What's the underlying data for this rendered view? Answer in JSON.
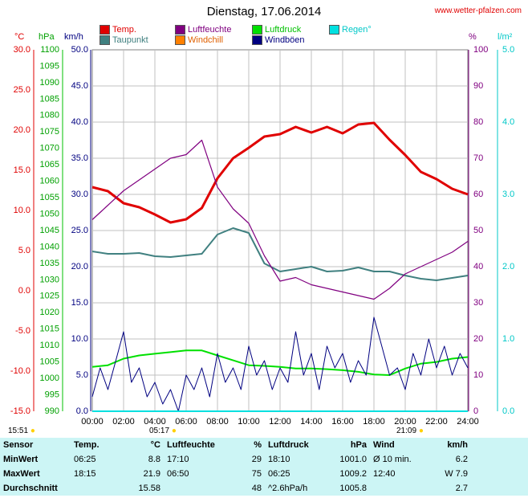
{
  "title": "Dienstag, 17.06.2014",
  "credit": "www.wetter-pfalzen.com",
  "colors": {
    "temp": "#e00000",
    "humidity": "#800080",
    "pressure": "#00e000",
    "dewpoint": "#408080",
    "windchill": "#ff8000",
    "gusts": "#000080",
    "rain": "#00e0e0",
    "wind": "#000080"
  },
  "legend": [
    {
      "label": "Temp.",
      "color": "#e00000",
      "text_color": "#e00000"
    },
    {
      "label": "Luftfeuchte",
      "color": "#800080",
      "text_color": "#800080"
    },
    {
      "label": "Luftdruck",
      "color": "#00e000",
      "text_color": "#00c000"
    },
    {
      "label": "Regen°",
      "color": "#00e0e0",
      "text_color": "#00c8c8"
    },
    {
      "label": "Taupunkt",
      "color": "#408080",
      "text_color": "#408080"
    },
    {
      "label": "Windchill",
      "color": "#ff8000",
      "text_color": "#e06000"
    },
    {
      "label": "Windböen",
      "color": "#000080",
      "text_color": "#000080"
    }
  ],
  "axes": {
    "temp": {
      "unit": "°C",
      "ticks": [
        "30.0",
        "25.0",
        "20.0",
        "15.0",
        "10.0",
        "5.0",
        "0.0",
        "-5.0",
        "-10.0",
        "-15.0"
      ]
    },
    "pressure": {
      "unit": "hPa",
      "ticks": [
        "1100",
        "1095",
        "1090",
        "1085",
        "1080",
        "1075",
        "1070",
        "1065",
        "1060",
        "1055",
        "1050",
        "1045",
        "1040",
        "1035",
        "1030",
        "1025",
        "1020",
        "1015",
        "1010",
        "1005",
        "1000",
        "995",
        "990"
      ]
    },
    "wind": {
      "unit": "km/h",
      "ticks": [
        "50.0",
        "45.0",
        "40.0",
        "35.0",
        "30.0",
        "25.0",
        "20.0",
        "15.0",
        "10.0",
        "5.0",
        "0.0"
      ]
    },
    "humidity": {
      "unit": "%",
      "ticks": [
        "100",
        "90",
        "80",
        "70",
        "60",
        "50",
        "40",
        "30",
        "20",
        "10",
        "0"
      ]
    },
    "rain": {
      "unit": "l/m²",
      "ticks": [
        "5.0",
        "4.0",
        "3.0",
        "2.0",
        "1.0",
        "0.0"
      ]
    },
    "time": {
      "ticks": [
        "00:00",
        "02:00",
        "04:00",
        "06:00",
        "08:00",
        "10:00",
        "12:00",
        "14:00",
        "16:00",
        "18:00",
        "20:00",
        "22:00",
        "24:00"
      ]
    }
  },
  "sun": {
    "left_time": "15:51",
    "sunrise": "05:17",
    "sunset": "21:09"
  },
  "chart_data": {
    "type": "line",
    "title": "Dienstag, 17.06.2014",
    "x_range": [
      "00:00",
      "24:00"
    ],
    "y_axes": {
      "temp_c": [
        -15,
        30
      ],
      "pressure_hpa": [
        990,
        1100
      ],
      "wind_kmh": [
        0,
        50
      ],
      "humidity_pct": [
        0,
        100
      ],
      "rain_lm2": [
        0,
        5
      ]
    },
    "grid": true,
    "series": [
      {
        "name": "Temp.",
        "axis": "temp_c",
        "x": [
          0,
          1,
          2,
          3,
          4,
          5,
          6,
          7,
          8,
          9,
          10,
          11,
          12,
          13,
          14,
          15,
          16,
          17,
          18,
          19,
          20,
          21,
          22,
          23,
          24
        ],
        "y": [
          12.9,
          12.4,
          10.9,
          10.4,
          9.5,
          8.5,
          8.9,
          10.3,
          14.0,
          16.5,
          17.8,
          19.2,
          19.5,
          20.4,
          19.7,
          20.4,
          19.6,
          20.7,
          20.9,
          18.8,
          16.9,
          14.8,
          13.9,
          12.7,
          12.0
        ]
      },
      {
        "name": "Taupunkt",
        "axis": "temp_c",
        "x": [
          0,
          1,
          2,
          3,
          4,
          5,
          6,
          7,
          8,
          9,
          10,
          11,
          12,
          13,
          14,
          15,
          16,
          17,
          18,
          19,
          20,
          21,
          22,
          23,
          24
        ],
        "y": [
          4.9,
          4.6,
          4.6,
          4.7,
          4.3,
          4.2,
          4.4,
          4.6,
          7.0,
          7.8,
          7.2,
          3.4,
          2.4,
          2.7,
          3.0,
          2.4,
          2.5,
          2.9,
          2.4,
          2.4,
          1.9,
          1.5,
          1.3,
          1.6,
          1.9
        ]
      },
      {
        "name": "Luftfeuchte",
        "axis": "humidity_pct",
        "x": [
          0,
          1,
          2,
          3,
          4,
          5,
          6,
          7,
          8,
          9,
          10,
          11,
          12,
          13,
          14,
          15,
          16,
          17,
          18,
          19,
          20,
          21,
          22,
          23,
          24
        ],
        "y": [
          53,
          57,
          61,
          64,
          67,
          70,
          71,
          75,
          62,
          56,
          52,
          43,
          36,
          37,
          35,
          34,
          33,
          32,
          31,
          34,
          38,
          40,
          42,
          44,
          47
        ]
      },
      {
        "name": "Luftdruck",
        "axis": "pressure_hpa",
        "x": [
          0,
          1,
          2,
          3,
          4,
          5,
          6,
          7,
          8,
          9,
          10,
          11,
          12,
          13,
          14,
          15,
          16,
          17,
          18,
          19,
          20,
          21,
          22,
          23,
          24
        ],
        "y": [
          1003.5,
          1004.0,
          1006.0,
          1007.0,
          1007.5,
          1008.0,
          1008.5,
          1008.5,
          1007.0,
          1005.5,
          1004.0,
          1003.8,
          1003.5,
          1003.0,
          1003.0,
          1002.8,
          1002.5,
          1002.0,
          1001.2,
          1001.0,
          1003.0,
          1004.5,
          1005.0,
          1006.0,
          1006.5
        ]
      },
      {
        "name": "Windböen",
        "axis": "wind_kmh",
        "x": [
          0,
          0.5,
          1,
          1.5,
          2,
          2.5,
          3,
          3.5,
          4,
          4.5,
          5,
          5.5,
          6,
          6.5,
          7,
          7.5,
          8,
          8.5,
          9,
          9.5,
          10,
          10.5,
          11,
          11.5,
          12,
          12.5,
          13,
          13.5,
          14,
          14.5,
          15,
          15.5,
          16,
          16.5,
          17,
          17.5,
          18,
          18.5,
          19,
          19.5,
          20,
          20.5,
          21,
          21.5,
          22,
          22.5,
          23,
          23.5,
          24
        ],
        "y": [
          2,
          6,
          3,
          7,
          11,
          4,
          6,
          2,
          4,
          1,
          3,
          0,
          5,
          3,
          6,
          2,
          8,
          4,
          6,
          3,
          9,
          5,
          7,
          3,
          6,
          4,
          11,
          5,
          8,
          3,
          9,
          6,
          8,
          4,
          7,
          5,
          13,
          9,
          5,
          6,
          3,
          8,
          5,
          10,
          6,
          9,
          5,
          8,
          6
        ]
      }
    ]
  },
  "stats": {
    "header": {
      "sensor": "Sensor",
      "temp": "Temp.",
      "temp_unit": "°C",
      "hum": "Luftfeuchte",
      "hum_unit": "%",
      "press": "Luftdruck",
      "press_unit": "hPa",
      "wind": "Wind",
      "wind_unit": "km/h"
    },
    "rows": [
      {
        "label": "MinWert",
        "temp_time": "06:25",
        "temp_val": "8.8",
        "hum_time": "17:10",
        "hum_val": "29",
        "press_time": "18:10",
        "press_val": "1001.0",
        "wind_time": "Ø 10 min.",
        "wind_val": "6.2"
      },
      {
        "label": "MaxWert",
        "temp_time": "18:15",
        "temp_val": "21.9",
        "hum_time": "06:50",
        "hum_val": "75",
        "press_time": "06:25",
        "press_val": "1009.2",
        "wind_time": "12:40",
        "wind_val": "W 7.9"
      },
      {
        "label": "Durchschnitt",
        "temp_time": "",
        "temp_val": "15.58",
        "hum_time": "",
        "hum_val": "48",
        "press_time": "^2.6hPa/h",
        "press_val": "1005.8",
        "wind_time": "",
        "wind_val": "2.7"
      }
    ]
  }
}
